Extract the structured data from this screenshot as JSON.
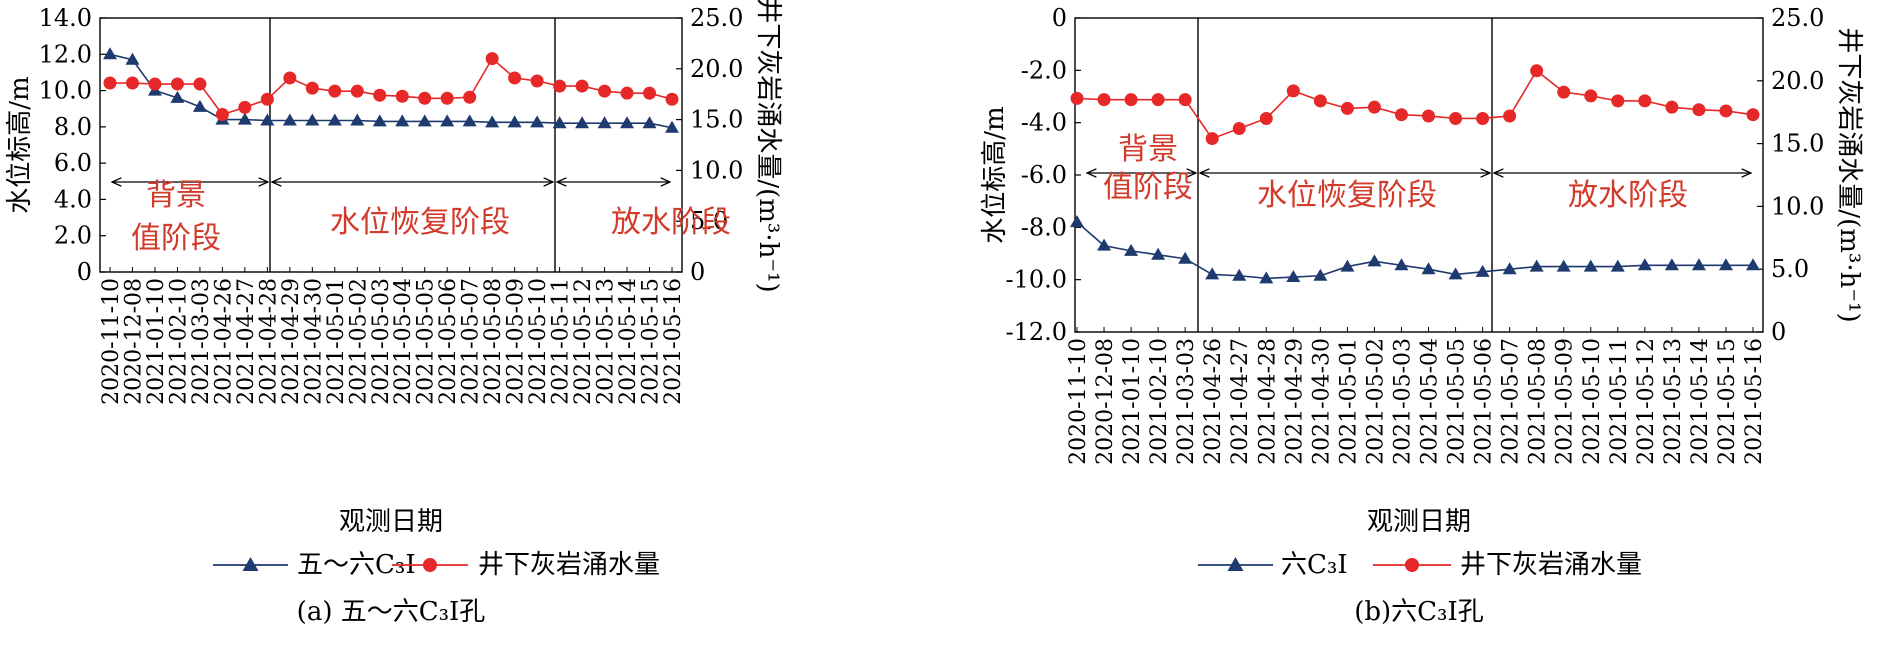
{
  "chart_data": [
    {
      "type": "line",
      "categories": [
        "2020-11-10",
        "2020-12-08",
        "2021-01-10",
        "2021-02-10",
        "2021-03-03",
        "2021-04-26",
        "2021-04-27",
        "2021-04-28",
        "2021-04-29",
        "2021-04-30",
        "2021-05-01",
        "2021-05-02",
        "2021-05-03",
        "2021-05-04",
        "2021-05-05",
        "2021-05-06",
        "2021-05-07",
        "2021-05-08",
        "2021-05-09",
        "2021-05-10",
        "2021-05-11",
        "2021-05-12",
        "2021-05-13",
        "2021-05-14",
        "2021-05-15",
        "2021-05-16"
      ],
      "xlabel": "观测日期",
      "ylabel": "水位标高/m",
      "ylabel_right": "井下灰岩涌水量/(m³·h⁻¹)",
      "ylim": [
        0,
        14
      ],
      "yticks": [
        "0",
        "2.0",
        "4.0",
        "6.0",
        "8.0",
        "10.0",
        "12.0",
        "14.0"
      ],
      "ylim_right": [
        0,
        25
      ],
      "yticks_right": [
        "0",
        "5.0",
        "10.0",
        "15.0",
        "20.0",
        "25.0"
      ],
      "series": [
        {
          "name": "五～六C₃Ⅰ",
          "axis": "left",
          "color": "#1f3a6e",
          "marker": "triangle",
          "values": [
            12.0,
            11.7,
            10.0,
            9.6,
            9.1,
            8.4,
            8.4,
            8.35,
            8.35,
            8.35,
            8.35,
            8.35,
            8.3,
            8.3,
            8.3,
            8.3,
            8.3,
            8.25,
            8.25,
            8.25,
            8.2,
            8.2,
            8.2,
            8.2,
            8.2,
            7.95
          ]
        },
        {
          "name": "井下灰岩涌水量",
          "axis": "right",
          "color": "#e62828",
          "marker": "circle",
          "values": [
            18.6,
            18.6,
            18.5,
            18.5,
            18.5,
            15.5,
            16.2,
            17.0,
            19.1,
            18.1,
            17.8,
            17.8,
            17.4,
            17.3,
            17.1,
            17.1,
            17.2,
            21.0,
            19.1,
            18.8,
            18.3,
            18.3,
            17.8,
            17.6,
            17.6,
            17.0
          ]
        }
      ],
      "phases": [
        {
          "label_lines": [
            "背景",
            "值阶段"
          ]
        },
        {
          "label_lines": [
            "水位恢复阶段"
          ]
        },
        {
          "label_lines": [
            "放水阶段"
          ]
        }
      ],
      "caption": "(a) 五～六C₃Ⅰ孔",
      "legend": "bottom"
    },
    {
      "type": "line",
      "categories": [
        "2020-11-10",
        "2020-12-08",
        "2021-01-10",
        "2021-02-10",
        "2021-03-03",
        "2021-04-26",
        "2021-04-27",
        "2021-04-28",
        "2021-04-29",
        "2021-04-30",
        "2021-05-01",
        "2021-05-02",
        "2021-05-03",
        "2021-05-04",
        "2021-05-05",
        "2021-05-06",
        "2021-05-07",
        "2021-05-08",
        "2021-05-09",
        "2021-05-10",
        "2021-05-11",
        "2021-05-12",
        "2021-05-13",
        "2021-05-14",
        "2021-05-15",
        "2021-05-16"
      ],
      "xlabel": "观测日期",
      "ylabel": "水位标高/m",
      "ylabel_right": "井下灰岩涌水量/(m³·h⁻¹)",
      "ylim": [
        -12,
        0
      ],
      "yticks": [
        "-12.0",
        "-10.0",
        "-8.0",
        "-6.0",
        "-4.0",
        "-2.0",
        "0"
      ],
      "ylim_right": [
        0,
        25
      ],
      "yticks_right": [
        "0",
        "5.0",
        "10.0",
        "15.0",
        "20.0",
        "25.0"
      ],
      "series": [
        {
          "name": "六C₃Ⅰ",
          "axis": "left",
          "color": "#1f3a6e",
          "marker": "triangle",
          "values": [
            -7.8,
            -8.7,
            -8.9,
            -9.05,
            -9.2,
            -9.8,
            -9.85,
            -9.95,
            -9.9,
            -9.85,
            -9.5,
            -9.3,
            -9.45,
            -9.6,
            -9.8,
            -9.7,
            -9.6,
            -9.5,
            -9.5,
            -9.5,
            -9.5,
            -9.45,
            -9.45,
            -9.45,
            -9.45,
            -9.45
          ]
        },
        {
          "name": "井下灰岩涌水量",
          "axis": "right",
          "color": "#e62828",
          "marker": "circle",
          "values": [
            18.6,
            18.5,
            18.5,
            18.5,
            18.5,
            15.4,
            16.2,
            17.0,
            19.2,
            18.4,
            17.8,
            17.9,
            17.3,
            17.2,
            17.0,
            17.0,
            17.2,
            20.8,
            19.1,
            18.8,
            18.4,
            18.4,
            17.9,
            17.7,
            17.6,
            17.3
          ]
        }
      ],
      "phases": [
        {
          "label_lines": [
            "背景",
            "值阶段"
          ]
        },
        {
          "label_lines": [
            "水位恢复阶段"
          ]
        },
        {
          "label_lines": [
            "放水阶段"
          ]
        }
      ],
      "caption": "(b)六C₃Ⅰ孔",
      "legend": "bottom"
    }
  ]
}
